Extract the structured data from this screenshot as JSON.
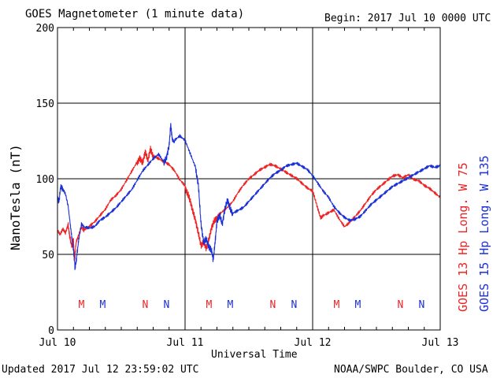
{
  "header": {
    "title": "GOES Magnetometer (1 minute data)",
    "begin": "Begin:  2017 Jul 10 0000 UTC"
  },
  "footer": {
    "updated": "Updated 2017 Jul 12 23:59:02 UTC",
    "credit": "NOAA/SWPC Boulder, CO USA"
  },
  "colors": {
    "goes13": "#ee2222",
    "goes15": "#1a2fd6",
    "axis": "#000000",
    "background": "#ffffff"
  },
  "chart_data": {
    "type": "line",
    "title": "GOES Magnetometer (1 minute data)",
    "xlabel": "Universal Time",
    "ylabel": "NanoTesla (nT)",
    "xlim": [
      0,
      72
    ],
    "xunit": "hours since 2017 Jul 10 0000 UTC",
    "ylim": [
      0,
      200
    ],
    "yticks": [
      0,
      50,
      100,
      150,
      200
    ],
    "x_tick_labels": [
      {
        "x": 0,
        "label": "Jul 10"
      },
      {
        "x": 24,
        "label": "Jul 11"
      },
      {
        "x": 48,
        "label": "Jul 12"
      },
      {
        "x": 72,
        "label": "Jul 13"
      }
    ],
    "grid": true,
    "legend_placement": "right (vertical)",
    "series": [
      {
        "name": "GOES 13 Hp  Long. W 75",
        "color": "#ee2222",
        "points": [
          [
            0,
            66
          ],
          [
            0.5,
            63
          ],
          [
            1,
            67
          ],
          [
            1.5,
            64
          ],
          [
            2,
            70
          ],
          [
            2.3,
            62
          ],
          [
            2.7,
            55
          ],
          [
            3,
            60
          ],
          [
            3.2,
            45
          ],
          [
            3.5,
            58
          ],
          [
            4,
            63
          ],
          [
            4.5,
            68
          ],
          [
            5,
            66
          ],
          [
            6,
            68
          ],
          [
            7,
            71
          ],
          [
            8,
            75
          ],
          [
            9,
            79
          ],
          [
            10,
            85
          ],
          [
            11,
            88
          ],
          [
            12,
            92
          ],
          [
            13,
            98
          ],
          [
            14,
            104
          ],
          [
            15,
            110
          ],
          [
            15.5,
            114
          ],
          [
            16,
            110
          ],
          [
            16.5,
            118
          ],
          [
            17,
            112
          ],
          [
            17.5,
            120
          ],
          [
            18,
            114
          ],
          [
            19,
            112
          ],
          [
            20,
            110
          ],
          [
            21,
            108
          ],
          [
            22,
            104
          ],
          [
            23,
            98
          ],
          [
            24,
            94
          ],
          [
            24.5,
            90
          ],
          [
            25,
            85
          ],
          [
            25.5,
            78
          ],
          [
            26,
            72
          ],
          [
            26.5,
            64
          ],
          [
            27,
            56
          ],
          [
            27.5,
            58
          ],
          [
            28,
            54
          ],
          [
            28.5,
            60
          ],
          [
            29,
            68
          ],
          [
            29.5,
            72
          ],
          [
            30,
            74
          ],
          [
            31,
            77
          ],
          [
            32,
            80
          ],
          [
            33,
            84
          ],
          [
            34,
            90
          ],
          [
            35,
            95
          ],
          [
            36,
            99
          ],
          [
            37,
            102
          ],
          [
            38,
            105
          ],
          [
            39,
            107
          ],
          [
            40,
            109
          ],
          [
            41,
            108
          ],
          [
            42,
            106
          ],
          [
            43,
            104
          ],
          [
            44,
            102
          ],
          [
            45,
            100
          ],
          [
            46,
            97
          ],
          [
            47,
            94
          ],
          [
            48,
            92
          ],
          [
            48.5,
            86
          ],
          [
            49,
            80
          ],
          [
            49.5,
            74
          ],
          [
            50,
            76
          ],
          [
            51,
            78
          ],
          [
            52,
            80
          ],
          [
            53,
            74
          ],
          [
            54,
            69
          ],
          [
            55,
            72
          ],
          [
            56,
            76
          ],
          [
            57,
            80
          ],
          [
            58,
            85
          ],
          [
            59,
            90
          ],
          [
            60,
            94
          ],
          [
            61,
            97
          ],
          [
            62,
            100
          ],
          [
            63,
            103
          ],
          [
            64,
            104
          ],
          [
            65,
            102
          ],
          [
            66,
            104
          ],
          [
            67,
            101
          ],
          [
            68,
            100
          ],
          [
            69,
            97
          ],
          [
            70,
            95
          ],
          [
            71,
            92
          ],
          [
            72,
            89
          ]
        ]
      },
      {
        "name": "GOES 15 Hp  Long. W 135",
        "color": "#1a2fd6",
        "points": [
          [
            0,
            88
          ],
          [
            0.3,
            85
          ],
          [
            0.6,
            95
          ],
          [
            1,
            93
          ],
          [
            1.5,
            90
          ],
          [
            2,
            82
          ],
          [
            2.4,
            70
          ],
          [
            2.8,
            58
          ],
          [
            3.1,
            50
          ],
          [
            3.3,
            41
          ],
          [
            3.6,
            48
          ],
          [
            4,
            60
          ],
          [
            4.5,
            70
          ],
          [
            5,
            68
          ],
          [
            6,
            67
          ],
          [
            7,
            68
          ],
          [
            8,
            72
          ],
          [
            9,
            74
          ],
          [
            10,
            77
          ],
          [
            11,
            80
          ],
          [
            12,
            84
          ],
          [
            13,
            88
          ],
          [
            14,
            92
          ],
          [
            15,
            98
          ],
          [
            16,
            104
          ],
          [
            17,
            108
          ],
          [
            18,
            112
          ],
          [
            19,
            115
          ],
          [
            20,
            110
          ],
          [
            20.5,
            114
          ],
          [
            21,
            122
          ],
          [
            21.3,
            136
          ],
          [
            21.6,
            126
          ],
          [
            22,
            124
          ],
          [
            23,
            127
          ],
          [
            24,
            124
          ],
          [
            25,
            115
          ],
          [
            26,
            106
          ],
          [
            26.5,
            96
          ],
          [
            27,
            70
          ],
          [
            27.5,
            58
          ],
          [
            28,
            60
          ],
          [
            28.5,
            55
          ],
          [
            29,
            52
          ],
          [
            29.3,
            46
          ],
          [
            29.7,
            60
          ],
          [
            30,
            72
          ],
          [
            30.5,
            76
          ],
          [
            31,
            70
          ],
          [
            31.5,
            80
          ],
          [
            32,
            86
          ],
          [
            32.5,
            80
          ],
          [
            33,
            76
          ],
          [
            34,
            78
          ],
          [
            35,
            80
          ],
          [
            36,
            84
          ],
          [
            37,
            88
          ],
          [
            38,
            92
          ],
          [
            39,
            96
          ],
          [
            40,
            100
          ],
          [
            41,
            103
          ],
          [
            42,
            105
          ],
          [
            43,
            108
          ],
          [
            44,
            109
          ],
          [
            45,
            110
          ],
          [
            46,
            108
          ],
          [
            47,
            106
          ],
          [
            48,
            102
          ],
          [
            49,
            97
          ],
          [
            50,
            92
          ],
          [
            51,
            88
          ],
          [
            52,
            82
          ],
          [
            53,
            78
          ],
          [
            54,
            75
          ],
          [
            55,
            73
          ],
          [
            56,
            74
          ],
          [
            57,
            76
          ],
          [
            58,
            80
          ],
          [
            59,
            84
          ],
          [
            60,
            87
          ],
          [
            61,
            90
          ],
          [
            62,
            93
          ],
          [
            63,
            96
          ],
          [
            64,
            98
          ],
          [
            65,
            100
          ],
          [
            66,
            102
          ],
          [
            67,
            104
          ],
          [
            68,
            106
          ],
          [
            69,
            108
          ],
          [
            70,
            110
          ],
          [
            71,
            109
          ],
          [
            72,
            110
          ]
        ]
      }
    ],
    "annotations": [
      {
        "x": 4.5,
        "text": "M",
        "series": "GOES 13 Hp  Long. W 75"
      },
      {
        "x": 8.5,
        "text": "M",
        "series": "GOES 15 Hp  Long. W 135"
      },
      {
        "x": 16.5,
        "text": "N",
        "series": "GOES 13 Hp  Long. W 75"
      },
      {
        "x": 20.5,
        "text": "N",
        "series": "GOES 15 Hp  Long. W 135"
      },
      {
        "x": 28.5,
        "text": "M",
        "series": "GOES 13 Hp  Long. W 75"
      },
      {
        "x": 32.5,
        "text": "M",
        "series": "GOES 15 Hp  Long. W 135"
      },
      {
        "x": 40.5,
        "text": "N",
        "series": "GOES 13 Hp  Long. W 75"
      },
      {
        "x": 44.5,
        "text": "N",
        "series": "GOES 15 Hp  Long. W 135"
      },
      {
        "x": 52.5,
        "text": "M",
        "series": "GOES 13 Hp  Long. W 75"
      },
      {
        "x": 56.5,
        "text": "M",
        "series": "GOES 15 Hp  Long. W 135"
      },
      {
        "x": 64.5,
        "text": "N",
        "series": "GOES 13 Hp  Long. W 75"
      },
      {
        "x": 68.5,
        "text": "N",
        "series": "GOES 15 Hp  Long. W 135"
      }
    ]
  }
}
